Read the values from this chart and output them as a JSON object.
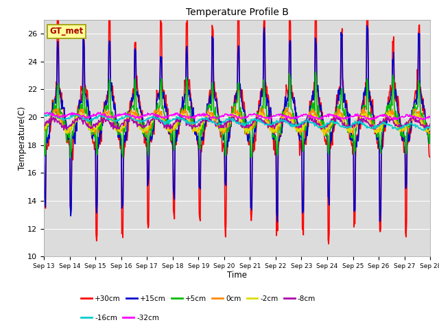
{
  "title": "Temperature Profile B",
  "xlabel": "Time",
  "ylabel": "Temperature(C)",
  "ylim": [
    10,
    27
  ],
  "yticks": [
    10,
    12,
    14,
    16,
    18,
    20,
    22,
    24,
    26
  ],
  "xtick_labels": [
    "Sep 13",
    "Sep 14",
    "Sep 15",
    "Sep 16",
    "Sep 17",
    "Sep 18",
    "Sep 19",
    "Sep 20",
    "Sep 21",
    "Sep 22",
    "Sep 23",
    "Sep 24",
    "Sep 25",
    "Sep 26",
    "Sep 27",
    "Sep 28"
  ],
  "legend_label": "GT_met",
  "legend_box_color": "#FFFF99",
  "legend_box_edge": "#999900",
  "bg_color": "#DCDCDC",
  "grid_color": "#FFFFFF",
  "series": [
    {
      "label": "+30cm",
      "color": "#FF0000",
      "lw": 1.2
    },
    {
      "label": "+15cm",
      "color": "#0000CC",
      "lw": 1.2
    },
    {
      "label": "+5cm",
      "color": "#00BB00",
      "lw": 1.2
    },
    {
      "label": "0cm",
      "color": "#FF8800",
      "lw": 1.2
    },
    {
      "label": "-2cm",
      "color": "#DDDD00",
      "lw": 1.2
    },
    {
      "label": "-8cm",
      "color": "#AA00AA",
      "lw": 1.2
    },
    {
      "label": "-16cm",
      "color": "#00CCCC",
      "lw": 1.2
    },
    {
      "label": "-32cm",
      "color": "#FF00FF",
      "lw": 1.2
    }
  ],
  "legend_ncol_row1": 6,
  "legend_ncol_row2": 2,
  "n_days": 15,
  "n_pts": 720,
  "seed": 12345
}
